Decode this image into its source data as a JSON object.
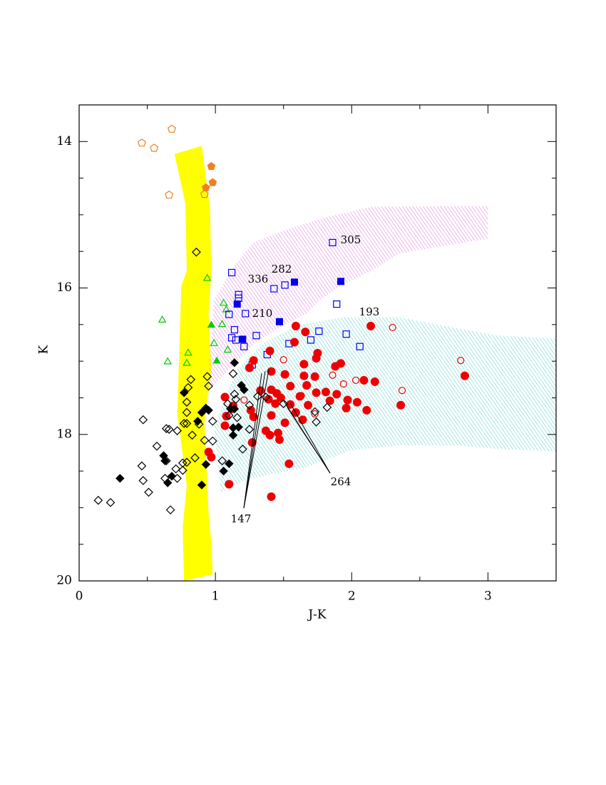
{
  "chart_data": {
    "type": "scatter",
    "x_label": "J-K",
    "y_label": "K",
    "xlim": [
      0,
      3.5
    ],
    "ylim": [
      20,
      13.5
    ],
    "xticks": [
      0,
      1,
      2,
      3
    ],
    "yticks": [
      14,
      16,
      18,
      20
    ],
    "xminorticks": [
      0.5,
      1.5,
      2.5,
      3.5
    ],
    "yminorticks": [
      14.5,
      15,
      15.5,
      16.5,
      17,
      17.5,
      18.5,
      19,
      19.5
    ],
    "regions": [
      {
        "color": "#ffff00",
        "fill": "solid",
        "x": [
          0.7,
          0.78,
          0.79,
          0.75,
          0.72,
          0.79,
          0.76,
          0.77,
          0.98,
          0.97,
          0.95,
          0.92,
          0.97,
          0.95,
          0.97,
          0.96,
          0.9
        ],
        "y": [
          14.17,
          14.85,
          15.77,
          15.97,
          17.72,
          18.69,
          19.27,
          20.0,
          19.91,
          19.47,
          19.08,
          17.82,
          17.14,
          16.36,
          15.77,
          14.91,
          14.06
        ]
      },
      {
        "color": "#e070e0",
        "fill": "hatch",
        "x": [
          0.99,
          1.15,
          1.28,
          1.51,
          1.8,
          2.14,
          3.0,
          3.0,
          2.66,
          2.35,
          2.14,
          1.93,
          1.77,
          1.67,
          1.51,
          1.3,
          1.09,
          0.94
        ],
        "y": [
          16.16,
          15.67,
          15.38,
          15.21,
          15.04,
          14.89,
          14.88,
          15.33,
          15.43,
          15.53,
          15.77,
          15.96,
          16.16,
          16.35,
          16.5,
          16.74,
          17.13,
          17.42
        ]
      },
      {
        "color": "#50cccc",
        "fill": "hatch",
        "x": [
          0.99,
          1.15,
          1.36,
          1.62,
          1.93,
          2.35,
          2.77,
          3.08,
          3.5,
          3.5,
          3.08,
          2.77,
          2.35,
          1.98,
          1.88,
          1.67,
          1.41,
          1.2,
          1.04
        ],
        "y": [
          17.91,
          17.13,
          16.74,
          16.5,
          16.4,
          16.4,
          16.55,
          16.65,
          16.69,
          18.23,
          18.2,
          18.15,
          18.15,
          18.22,
          18.3,
          18.45,
          18.54,
          18.64,
          18.79
        ]
      }
    ],
    "series": [
      {
        "marker": "pentagon",
        "filled": false,
        "color": "#f08020",
        "x": [
          0.46,
          0.55,
          0.68,
          0.66,
          0.92
        ],
        "y": [
          14.02,
          14.09,
          13.83,
          14.73,
          14.72
        ]
      },
      {
        "marker": "pentagon",
        "filled": true,
        "color": "#f08020",
        "x": [
          0.97,
          0.98,
          0.93
        ],
        "y": [
          14.34,
          14.56,
          14.63
        ]
      },
      {
        "marker": "triangle",
        "filled": false,
        "color": "#00cc00",
        "x": [
          0.94,
          0.61,
          1.06,
          1.08,
          1.05,
          0.99,
          0.65,
          0.8,
          0.79,
          1.09
        ],
        "y": [
          15.86,
          16.43,
          16.2,
          16.29,
          16.49,
          16.75,
          17.0,
          16.88,
          17.02,
          16.84
        ]
      },
      {
        "marker": "triangle",
        "filled": true,
        "color": "#00cc00",
        "x": [
          0.97,
          1.01
        ],
        "y": [
          16.5,
          16.99
        ]
      },
      {
        "marker": "square",
        "filled": false,
        "color": "#0000ee",
        "x": [
          1.86,
          1.12,
          1.17,
          1.17,
          1.1,
          1.22,
          1.43,
          1.51,
          1.89,
          1.14,
          1.12,
          1.15,
          1.3,
          1.21,
          1.27,
          1.38,
          1.54,
          1.7,
          1.76,
          1.96,
          2.06
        ],
        "y": [
          15.38,
          15.79,
          16.09,
          16.14,
          16.36,
          16.35,
          16.01,
          15.96,
          16.22,
          16.57,
          16.68,
          16.71,
          16.65,
          16.8,
          17.05,
          16.91,
          16.76,
          16.71,
          16.59,
          16.63,
          16.8
        ]
      },
      {
        "marker": "square",
        "filled": true,
        "color": "#0000ee",
        "x": [
          1.58,
          1.92,
          1.16,
          1.47,
          1.2
        ],
        "y": [
          15.92,
          15.91,
          16.22,
          16.46,
          16.7
        ]
      },
      {
        "marker": "circle",
        "filled": false,
        "color": "#ee0000",
        "x": [
          2.3,
          1.5,
          2.8,
          1.86,
          2.03,
          1.94,
          2.37,
          1.63,
          1.73,
          1.21
        ],
        "y": [
          16.54,
          16.98,
          16.99,
          17.19,
          17.26,
          17.31,
          17.4,
          17.47,
          17.72,
          17.53
        ]
      },
      {
        "marker": "circle",
        "filled": true,
        "color": "#ee0000",
        "x": [
          2.14,
          1.59,
          1.66,
          1.58,
          1.4,
          1.75,
          1.74,
          1.92,
          1.28,
          1.25,
          1.41,
          1.65,
          1.88,
          1.51,
          1.65,
          1.33,
          1.41,
          1.67,
          1.39,
          1.45,
          1.48,
          1.55,
          1.62,
          1.74,
          1.81,
          1.89,
          1.97,
          2.17,
          2.09,
          1.44,
          1.55,
          1.68,
          1.84,
          2.04,
          1.96,
          2.11,
          2.36,
          1.59,
          1.26,
          1.13,
          1.07,
          1.12,
          1.28,
          1.41,
          1.51,
          1.37,
          1.46,
          1.4,
          1.47,
          1.27,
          1.08,
          1.07,
          1.64,
          0.95,
          0.97,
          1.54,
          1.1,
          1.41,
          2.83,
          1.73
        ],
        "y": [
          16.52,
          16.52,
          16.6,
          16.74,
          16.86,
          16.89,
          16.96,
          17.03,
          16.99,
          17.09,
          17.14,
          17.04,
          17.07,
          17.18,
          17.2,
          17.4,
          17.39,
          17.33,
          17.52,
          17.44,
          17.5,
          17.34,
          17.48,
          17.43,
          17.42,
          17.45,
          17.53,
          17.28,
          17.26,
          17.58,
          17.59,
          17.6,
          17.54,
          17.56,
          17.64,
          17.67,
          17.6,
          17.7,
          17.67,
          17.61,
          17.49,
          17.65,
          17.76,
          17.74,
          17.84,
          17.95,
          17.98,
          18.01,
          18.07,
          18.11,
          17.75,
          17.88,
          17.8,
          18.24,
          18.31,
          18.4,
          18.68,
          18.85,
          17.2,
          17.21
        ]
      },
      {
        "marker": "diamond",
        "filled": false,
        "color": "#000000",
        "x": [
          0.86,
          0.94,
          0.82,
          0.8,
          0.95,
          0.79,
          0.79,
          0.47,
          0.64,
          0.66,
          0.72,
          0.77,
          0.79,
          0.88,
          0.98,
          0.83,
          0.92,
          0.98,
          0.57,
          0.85,
          0.79,
          0.76,
          0.64,
          0.46,
          0.47,
          0.63,
          0.71,
          0.76,
          0.51,
          0.72,
          0.67,
          0.14,
          0.23,
          1.13,
          1.14,
          1.09,
          1.15,
          1.1,
          1.16,
          1.25,
          1.31,
          1.37,
          1.05,
          1.2,
          1.25,
          1.82,
          1.73,
          1.74,
          1.5
        ],
        "y": [
          15.51,
          17.21,
          17.25,
          17.36,
          17.34,
          17.56,
          17.7,
          17.8,
          17.92,
          17.93,
          17.95,
          17.85,
          17.85,
          17.86,
          17.82,
          18.01,
          18.08,
          18.09,
          18.16,
          18.32,
          18.38,
          18.39,
          18.36,
          18.43,
          18.63,
          18.6,
          18.47,
          18.49,
          18.79,
          18.6,
          19.03,
          18.9,
          18.93,
          17.17,
          17.45,
          17.58,
          17.52,
          17.74,
          17.77,
          17.6,
          17.48,
          17.49,
          18.36,
          18.2,
          17.93,
          17.63,
          17.69,
          17.83,
          17.58
        ]
      },
      {
        "marker": "diamond",
        "filled": true,
        "color": "#000000",
        "x": [
          1.14,
          0.77,
          0.93,
          0.95,
          0.9,
          1.19,
          1.21,
          1.11,
          1.14,
          1.13,
          1.17,
          1.13,
          0.62,
          0.63,
          0.3,
          0.68,
          0.65,
          0.93,
          1.1,
          1.06,
          0.9,
          0.87
        ],
        "y": [
          17.02,
          17.43,
          17.64,
          17.67,
          17.7,
          17.33,
          17.39,
          17.65,
          17.65,
          17.91,
          17.9,
          18.01,
          18.29,
          18.36,
          18.6,
          18.57,
          18.66,
          18.41,
          18.4,
          18.5,
          18.69,
          17.82
        ]
      }
    ],
    "annotations": [
      "305",
      "282",
      "336",
      "210",
      "193",
      "264",
      "147"
    ]
  }
}
